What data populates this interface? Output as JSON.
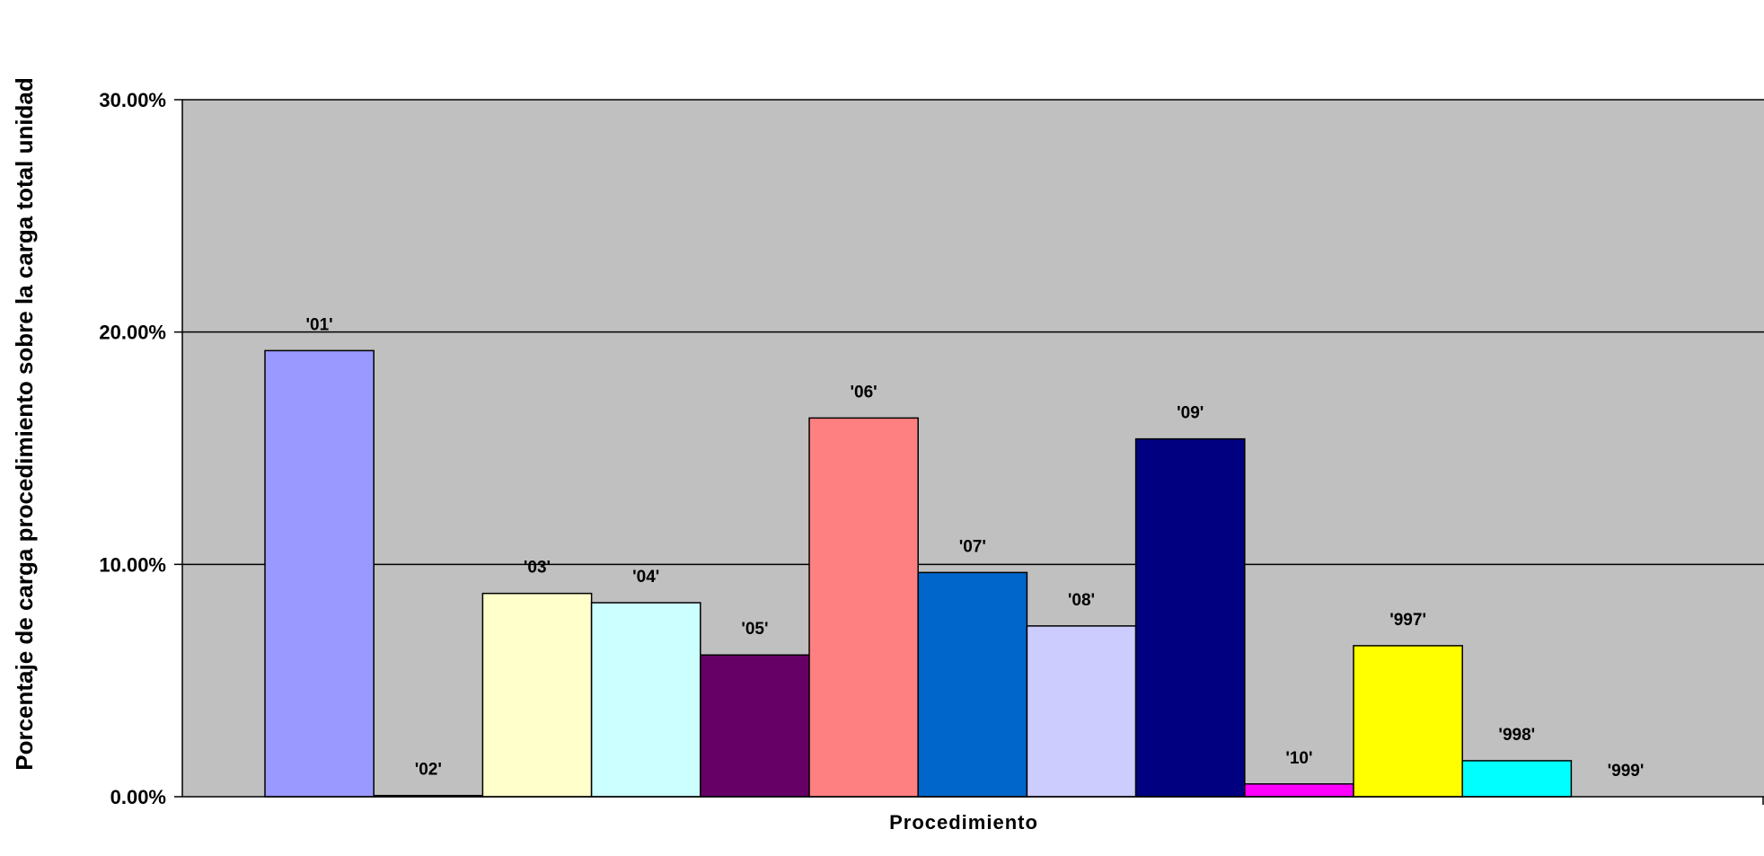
{
  "chart_data": {
    "type": "bar",
    "title": "",
    "xlabel": "Procedimiento",
    "ylabel": "Porcentaje de carga procedimiento sobre la carga total unidad",
    "ylim": [
      0,
      30
    ],
    "yticks": [
      0,
      10,
      20,
      30
    ],
    "ytick_labels": [
      "0.00%",
      "10.00%",
      "20.00%",
      "30.00%"
    ],
    "grid": "horizontal major gridlines",
    "plot_background": "#C0C0C0",
    "categories": [
      "'01'",
      "'02'",
      "'03'",
      "'04'",
      "'05'",
      "'06'",
      "'07'",
      "'08'",
      "'09'",
      "'10'",
      "'997'",
      "'998'",
      "'999'"
    ],
    "values": [
      19.2,
      0.05,
      8.75,
      8.35,
      6.1,
      16.3,
      9.65,
      7.35,
      15.4,
      0.55,
      6.5,
      1.55,
      0
    ],
    "colors": [
      "#9999FF",
      "#993366",
      "#FFFFCC",
      "#CCFFFF",
      "#660066",
      "#FF8080",
      "#0066CC",
      "#CCCCFF",
      "#000080",
      "#FF00FF",
      "#FFFF00",
      "#00FFFF",
      "#800080"
    ]
  }
}
